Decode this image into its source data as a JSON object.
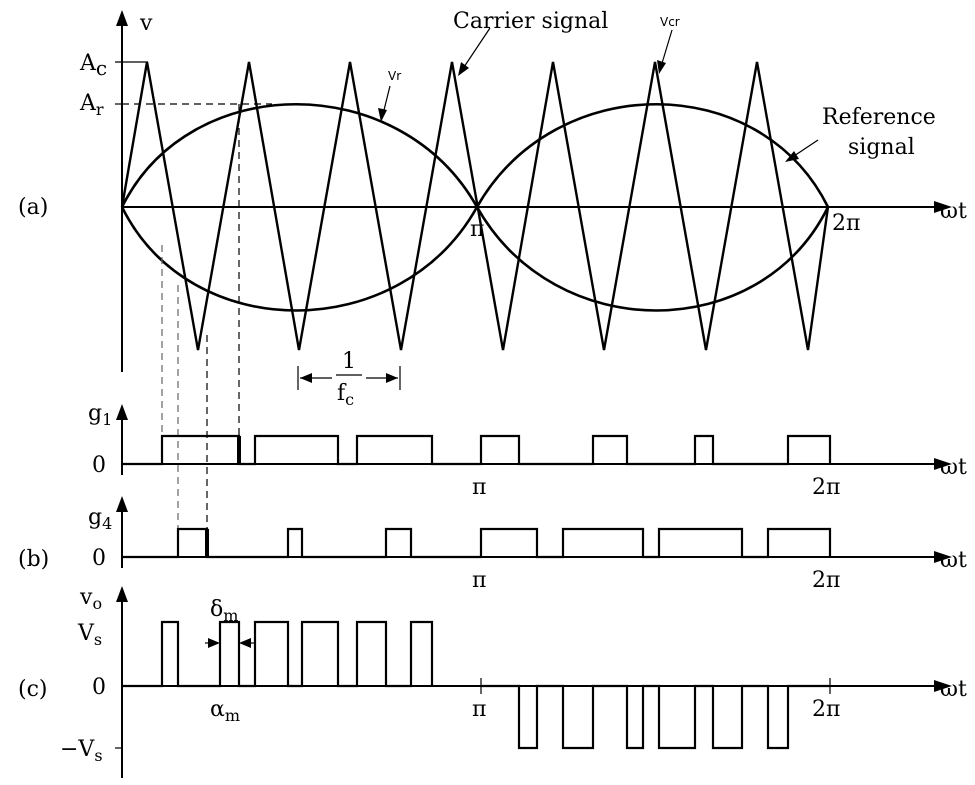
{
  "panels": {
    "a": {
      "tag": "(a)",
      "y_axis": "v",
      "x_axis": "ωt",
      "levels": [
        "Ac",
        "Ar"
      ],
      "ticks": [
        "π",
        "2π"
      ]
    },
    "b": {
      "tag": "(b)",
      "x_axis": "ωt",
      "ticks": [
        "π",
        "2π"
      ]
    },
    "c": {
      "tag": "(c)",
      "y_axis": "vo",
      "x_axis": "ωt",
      "levels": [
        "Vs",
        "0",
        "−Vs"
      ],
      "ticks": [
        "π",
        "2π"
      ]
    }
  },
  "labels": {
    "tag_a": "(a)",
    "tag_b": "(b)",
    "tag_c": "(c)",
    "v": "v",
    "ac_main": "A",
    "ac_sub": "c",
    "ar_main": "A",
    "ar_sub": "r",
    "omega_t": "ωt",
    "pi": "π",
    "two_pi": "2π",
    "carrier": "Carrier signal",
    "vcr": "Vcr",
    "vr": "Vr",
    "reference_1": "Reference",
    "reference_2": "signal",
    "fc_num": "1",
    "fc_main": "f",
    "fc_sub": "c",
    "g1_main": "g",
    "g1_sub": "1",
    "g4_main": "g",
    "g4_sub": "4",
    "zero": "0",
    "vo_main": "v",
    "vo_sub": "o",
    "vs_main": "V",
    "vs_sub": "s",
    "neg_vs_main": "−V",
    "neg_vs_sub": "s",
    "delta_main": "δ",
    "delta_sub": "m",
    "alpha_main": "α",
    "alpha_sub": "m"
  }
}
